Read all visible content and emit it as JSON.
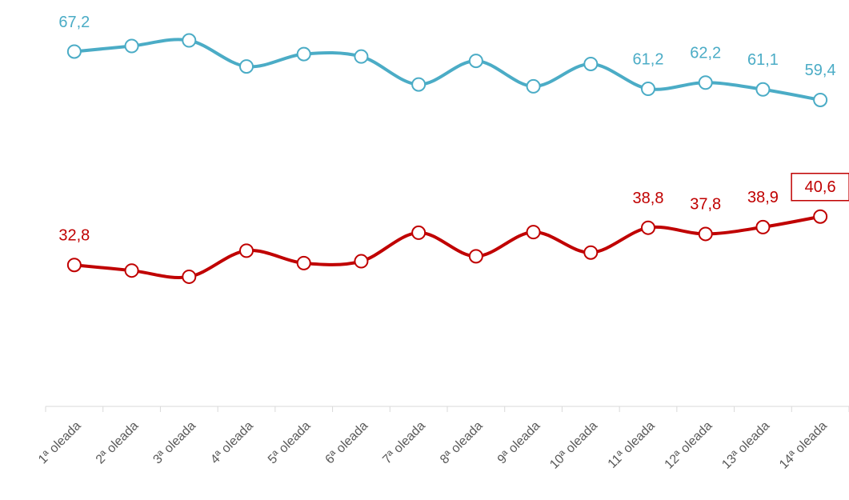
{
  "chart_data": {
    "type": "line",
    "categories": [
      "1ª oleada",
      "2ª oleada",
      "3ª oleada",
      "4ª oleada",
      "5ª oleada",
      "6ª oleada",
      "7ª oleada",
      "8ª oleada",
      "9ª oleada",
      "10ª oleada",
      "11ª oleada",
      "12ª oleada",
      "13ª oleada",
      "14ª oleada"
    ],
    "series": [
      {
        "color": "#4bacc6",
        "values": [
          67.2,
          68.1,
          69.0,
          64.8,
          66.8,
          66.4,
          61.9,
          65.7,
          61.6,
          65.2,
          61.2,
          62.2,
          61.1,
          59.4
        ],
        "value_labels": [
          "67,2",
          null,
          null,
          null,
          null,
          null,
          null,
          null,
          null,
          null,
          "61,2",
          "62,2",
          "61,1",
          "59,4"
        ]
      },
      {
        "color": "#c00000",
        "values": [
          32.8,
          31.9,
          30.9,
          35.1,
          33.1,
          33.4,
          38.0,
          34.2,
          38.1,
          34.8,
          38.8,
          37.8,
          38.9,
          40.6
        ],
        "value_labels": [
          "32,8",
          null,
          null,
          null,
          null,
          null,
          null,
          null,
          null,
          null,
          "38,8",
          "37,8",
          "38,9",
          "40,6"
        ]
      }
    ],
    "ylim": [
      10,
      75
    ]
  }
}
